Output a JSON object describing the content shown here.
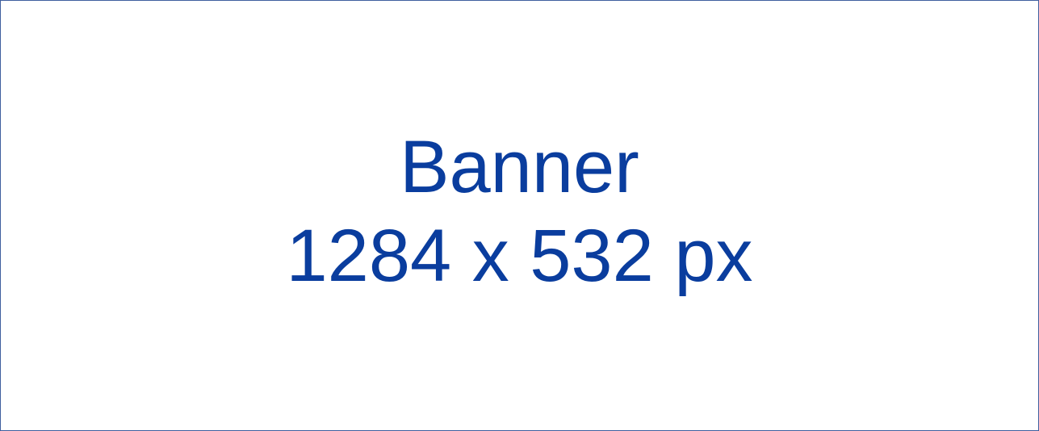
{
  "banner": {
    "title": "Banner",
    "dimensions": "1284 x 532 px",
    "text_color": "#0a3d9e",
    "border_color": "#3f5f9f",
    "background_color": "#ffffff"
  }
}
